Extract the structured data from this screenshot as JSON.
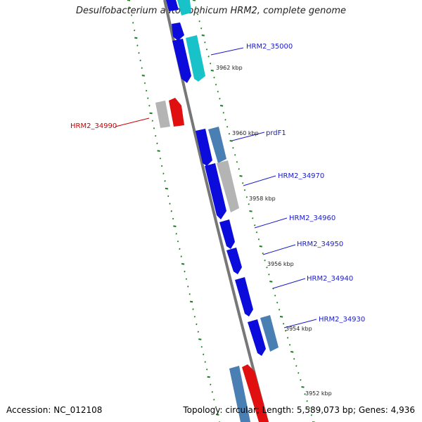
{
  "title": "Desulfobacterium autotrophicum HRM2, complete genome",
  "accession": "Accession: NC_012108",
  "stats": "Topology: circular; Length: 5,589,073 bp; Genes: 4,936",
  "colors": {
    "blue": "#0b0bdc",
    "steel": "#4a7fb4",
    "cyan": "#17c2c8",
    "gray": "#b4b4b4",
    "red": "#e01010",
    "tick": "#1b7d1b",
    "backbone": "#777777",
    "label_blue": "#1a1acc",
    "label_red": "#cc0000"
  },
  "kbp_labels": [
    "3962 kbp",
    "3960 kbp",
    "3958 kbp",
    "3956 kbp",
    "3954 kbp",
    "3952 kbp"
  ],
  "gene_labels": [
    {
      "text": "HRM2_35000",
      "color": "label_blue"
    },
    {
      "text": "HRM2_34990",
      "color": "label_red"
    },
    {
      "text": "prdF1",
      "color": "label_blue"
    },
    {
      "text": "HRM2_34970",
      "color": "label_blue"
    },
    {
      "text": "HRM2_34960",
      "color": "label_blue"
    },
    {
      "text": "HRM2_34950",
      "color": "label_blue"
    },
    {
      "text": "HRM2_34940",
      "color": "label_blue"
    },
    {
      "text": "HRM2_34930",
      "color": "label_blue"
    }
  ]
}
